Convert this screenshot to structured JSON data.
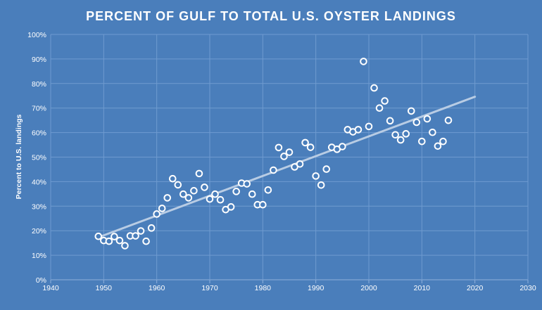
{
  "chart_data": {
    "type": "scatter",
    "title": "PERCENT OF GULF TO TOTAL U.S. OYSTER LANDINGS",
    "xlabel": "",
    "ylabel": "Percent to U.S. landings",
    "xlim": [
      1940,
      2030
    ],
    "ylim": [
      0,
      100
    ],
    "x_ticks": [
      1940,
      1950,
      1960,
      1970,
      1980,
      1990,
      2000,
      2010,
      2020,
      2030
    ],
    "y_ticks": [
      0,
      10,
      20,
      30,
      40,
      50,
      60,
      70,
      80,
      90,
      100
    ],
    "y_tick_labels": [
      "0%",
      "10%",
      "20%",
      "30%",
      "40%",
      "50%",
      "60%",
      "70%",
      "80%",
      "90%",
      "100%"
    ],
    "grid": true,
    "legend": "none",
    "colors": {
      "background": "#4a7ebb",
      "grid": "#6f9bd0",
      "marker_fill": "#4a7ebb",
      "marker_edge": "#ffffff",
      "trendline": "#b8cce4",
      "text": "#ffffff"
    },
    "series": [
      {
        "x": [
          1949,
          1950,
          1951,
          1952,
          1953,
          1954,
          1955,
          1956,
          1957,
          1958,
          1959,
          1960,
          1961,
          1962,
          1963,
          1964,
          1965,
          1966,
          1967,
          1968,
          1969,
          1970,
          1971,
          1972,
          1973,
          1974,
          1975,
          1976,
          1977,
          1978,
          1979,
          1980,
          1981,
          1982,
          1983,
          1984,
          1985,
          1986,
          1987,
          1988,
          1989,
          1990,
          1991,
          1992,
          1993,
          1994,
          1995,
          1996,
          1997,
          1998,
          1999,
          2000,
          2001,
          2002,
          2003,
          2004,
          2005,
          2006,
          2007,
          2008,
          2009,
          2010,
          2011,
          2012,
          2013,
          2014,
          2015
        ],
        "y": [
          17.7,
          16.0,
          15.7,
          17.6,
          16.0,
          13.9,
          17.9,
          17.9,
          19.9,
          15.7,
          21.1,
          26.8,
          29.1,
          33.4,
          41.2,
          38.7,
          34.9,
          33.4,
          36.3,
          43.3,
          37.7,
          32.9,
          34.9,
          32.6,
          28.6,
          29.7,
          36.0,
          39.4,
          39.1,
          34.9,
          30.6,
          30.6,
          36.6,
          44.7,
          53.9,
          50.3,
          52.0,
          46.0,
          47.2,
          55.9,
          54.0,
          42.3,
          38.6,
          45.1,
          54.0,
          53.2,
          54.3,
          61.2,
          60.3,
          61.2,
          89.0,
          62.5,
          78.2,
          70.0,
          72.9,
          64.8,
          59.1,
          57.0,
          59.5,
          68.8,
          64.2,
          56.4,
          65.6,
          60.1,
          54.5,
          56.4,
          65.0
        ]
      }
    ],
    "trendline": {
      "x": [
        1949,
        2020
      ],
      "y": [
        17.3,
        74.6
      ]
    }
  }
}
